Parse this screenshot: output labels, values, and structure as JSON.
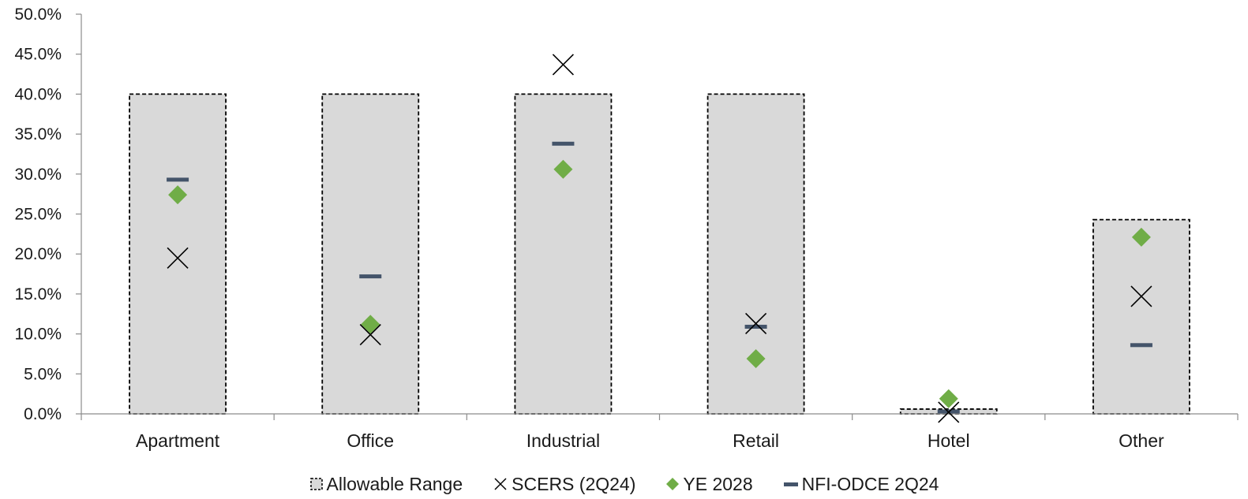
{
  "chart_data": {
    "type": "bar",
    "title": "",
    "xlabel": "",
    "ylabel": "",
    "categories": [
      "Apartment",
      "Office",
      "Industrial",
      "Retail",
      "Hotel",
      "Other"
    ],
    "ylim": [
      0,
      50
    ],
    "yticks": [
      0,
      5,
      10,
      15,
      20,
      25,
      30,
      35,
      40,
      45,
      50
    ],
    "ytick_labels": [
      "0.0%",
      "5.0%",
      "10.0%",
      "15.0%",
      "20.0%",
      "25.0%",
      "30.0%",
      "35.0%",
      "40.0%",
      "45.0%",
      "50.0%"
    ],
    "grid": false,
    "legend_position": "bottom",
    "series": [
      {
        "name": "Allowable Range",
        "kind": "range-bar",
        "values": [
          40.0,
          40.0,
          40.0,
          40.0,
          0.6,
          24.3
        ],
        "color": "#d9d9d9"
      },
      {
        "name": "SCERS (2Q24)",
        "kind": "x-marker",
        "values": [
          19.5,
          9.9,
          43.7,
          11.3,
          0.2,
          14.7
        ],
        "color": "#000000"
      },
      {
        "name": "YE 2028",
        "kind": "diamond-marker",
        "values": [
          27.4,
          11.2,
          30.6,
          6.9,
          1.9,
          22.1
        ],
        "color": "#70ad47"
      },
      {
        "name": "NFI-ODCE 2Q24",
        "kind": "dash-marker",
        "values": [
          29.3,
          17.2,
          33.8,
          10.9,
          0.3,
          8.6
        ],
        "color": "#44546a"
      }
    ]
  }
}
